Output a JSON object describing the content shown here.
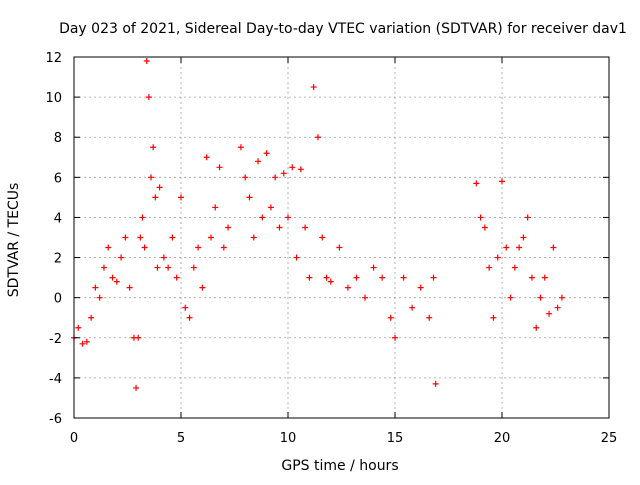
{
  "chart_data": {
    "type": "scatter",
    "title": "Day 023 of 2021, Sidereal Day-to-day VTEC variation (SDTVAR) for receiver dav1",
    "xlabel": "GPS time / hours",
    "ylabel": "SDTVAR / TECUs",
    "xlim": [
      0,
      25
    ],
    "ylim": [
      -6,
      12
    ],
    "xticks": [
      0,
      5,
      10,
      15,
      20,
      25
    ],
    "yticks": [
      -6,
      -4,
      -2,
      0,
      2,
      4,
      6,
      8,
      10,
      12
    ],
    "grid": true,
    "legend": "none",
    "marker": "+",
    "series": [
      {
        "name": "SDTVAR",
        "color": "#ff0000",
        "x": [
          0.0,
          0.2,
          0.4,
          0.6,
          0.8,
          1.0,
          1.2,
          1.4,
          1.6,
          1.8,
          2.0,
          2.2,
          2.4,
          2.6,
          2.8,
          2.9,
          3.0,
          3.1,
          3.2,
          3.3,
          3.4,
          3.5,
          3.6,
          3.7,
          3.8,
          3.9,
          4.0,
          4.2,
          4.4,
          4.6,
          4.8,
          5.0,
          5.2,
          5.4,
          5.6,
          5.8,
          6.0,
          6.2,
          6.4,
          6.6,
          6.8,
          7.0,
          7.2,
          7.8,
          8.0,
          8.2,
          8.4,
          8.6,
          8.8,
          9.0,
          9.2,
          9.4,
          9.6,
          9.8,
          10.0,
          10.2,
          10.4,
          10.6,
          10.8,
          11.0,
          11.2,
          11.4,
          11.6,
          11.8,
          12.0,
          12.4,
          12.8,
          13.2,
          13.6,
          14.0,
          14.4,
          14.8,
          15.0,
          15.4,
          15.8,
          16.2,
          16.6,
          16.8,
          16.9,
          18.8,
          19.0,
          19.2,
          19.4,
          19.6,
          19.8,
          20.0,
          20.2,
          20.4,
          20.6,
          20.8,
          21.0,
          21.2,
          21.4,
          21.6,
          21.8,
          22.0,
          22.2,
          22.4,
          22.6,
          22.8
        ],
        "y": [
          -2.0,
          -1.5,
          -2.3,
          -2.2,
          -1.0,
          0.5,
          0.0,
          1.5,
          2.5,
          1.0,
          0.8,
          2.0,
          3.0,
          0.5,
          -2.0,
          -4.5,
          -2.0,
          3.0,
          4.0,
          2.5,
          11.8,
          10.0,
          6.0,
          7.5,
          5.0,
          1.5,
          5.5,
          2.0,
          1.5,
          3.0,
          1.0,
          5.0,
          -0.5,
          -1.0,
          1.5,
          2.5,
          0.5,
          7.0,
          3.0,
          4.5,
          6.5,
          2.5,
          3.5,
          7.5,
          6.0,
          5.0,
          3.0,
          6.8,
          4.0,
          7.2,
          4.5,
          6.0,
          3.5,
          6.2,
          4.0,
          6.5,
          2.0,
          6.4,
          3.5,
          1.0,
          10.5,
          8.0,
          3.0,
          1.0,
          0.8,
          2.5,
          0.5,
          1.0,
          0.0,
          1.5,
          1.0,
          -1.0,
          -2.0,
          1.0,
          -0.5,
          0.5,
          -1.0,
          1.0,
          -4.3,
          5.7,
          4.0,
          3.5,
          1.5,
          -1.0,
          2.0,
          5.8,
          2.5,
          0.0,
          1.5,
          2.5,
          3.0,
          4.0,
          1.0,
          -1.5,
          0.0,
          1.0,
          -0.8,
          2.5,
          -0.5,
          0.0
        ]
      }
    ]
  }
}
